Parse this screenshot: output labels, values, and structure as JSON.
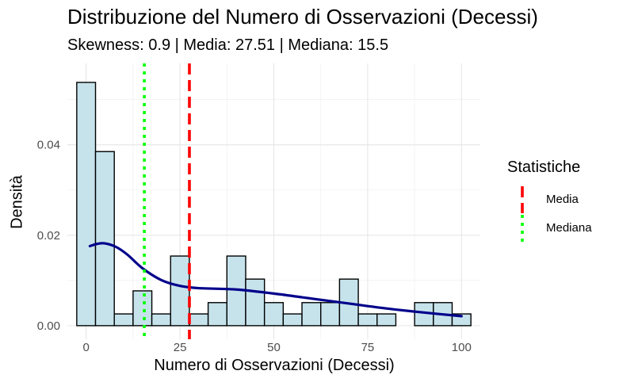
{
  "chart_data": {
    "type": "bar",
    "title": "Distribuzione del Numero di Osservazioni (Decessi)",
    "subtitle": "Skewness: 0.9 | Media: 27.51 | Mediana: 15.5",
    "xlabel": "Numero di Osservazioni (Decessi)",
    "ylabel": "Densità",
    "xlim": [
      -5,
      105
    ],
    "ylim": [
      -0.003,
      0.058
    ],
    "x_ticks": [
      0,
      25,
      50,
      75,
      100
    ],
    "y_ticks": [
      0.0,
      0.02,
      0.04
    ],
    "x_tick_labels": [
      "0",
      "25",
      "50",
      "75",
      "100"
    ],
    "y_tick_labels": [
      "0.00",
      "0.02",
      "0.04"
    ],
    "grid": true,
    "histogram": {
      "bin_width": 5,
      "bin_starts": [
        -2.5,
        2.5,
        7.5,
        12.5,
        17.5,
        22.5,
        27.5,
        32.5,
        37.5,
        42.5,
        47.5,
        52.5,
        57.5,
        62.5,
        67.5,
        72.5,
        77.5,
        82.5,
        87.5,
        92.5,
        97.5
      ],
      "density": [
        0.0538,
        0.0385,
        0.0026,
        0.0077,
        0.0026,
        0.0154,
        0.0026,
        0.0051,
        0.0154,
        0.0103,
        0.0051,
        0.0026,
        0.0051,
        0.0051,
        0.0103,
        0.0026,
        0.0026,
        0.0,
        0.0051,
        0.0051,
        0.0026
      ],
      "fill": "#c6e3ec",
      "stroke": "#000000"
    },
    "density_curve": {
      "color": "#00008b",
      "x": [
        1,
        3,
        5,
        8,
        11,
        15,
        20,
        25,
        30,
        40,
        50,
        60,
        70,
        80,
        90,
        100
      ],
      "y": [
        0.0176,
        0.0181,
        0.0182,
        0.0174,
        0.0157,
        0.0127,
        0.0101,
        0.0088,
        0.0083,
        0.008,
        0.0071,
        0.006,
        0.0049,
        0.0038,
        0.0029,
        0.0021
      ]
    },
    "vlines": [
      {
        "name": "Media",
        "x": 27.51,
        "color": "#ff0000",
        "style": "dashed"
      },
      {
        "name": "Mediana",
        "x": 15.5,
        "color": "#00ff00",
        "style": "dotted"
      }
    ],
    "legend": {
      "title": "Statistiche",
      "placement": "right",
      "entries": [
        "Media",
        "Mediana"
      ]
    }
  }
}
